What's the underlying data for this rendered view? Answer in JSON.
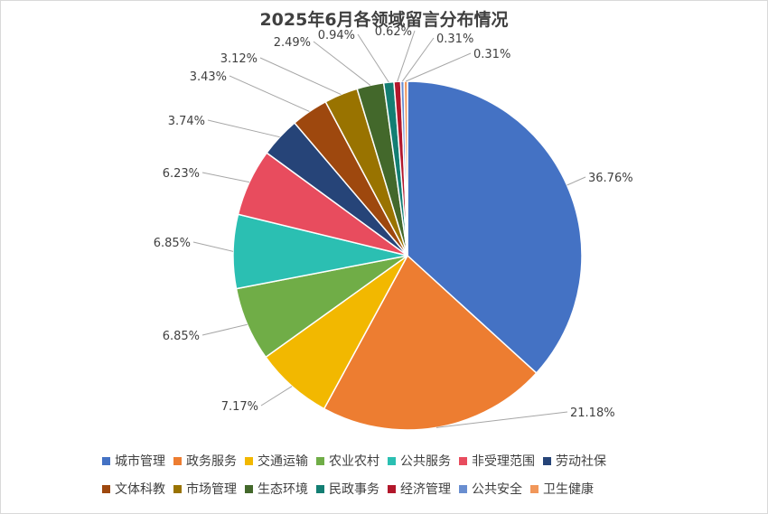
{
  "chart_data": {
    "type": "pie",
    "title": "2025年6月各领域留言分布情况",
    "slices": [
      {
        "label": "城市管理",
        "value": 36.76,
        "value_label": "36.76%",
        "color": "#4472C4"
      },
      {
        "label": "政务服务",
        "value": 21.18,
        "value_label": "21.18%",
        "color": "#ED7D31"
      },
      {
        "label": "交通运输",
        "value": 7.17,
        "value_label": "7.17%",
        "color": "#F2B800"
      },
      {
        "label": "农业农村",
        "value": 6.85,
        "value_label": "6.85%",
        "color": "#70AD47"
      },
      {
        "label": "公共服务",
        "value": 6.85,
        "value_label": "6.85%",
        "color": "#2BBFB2"
      },
      {
        "label": "非受理范围",
        "value": 6.23,
        "value_label": "6.23%",
        "color": "#E84C5E"
      },
      {
        "label": "劳动社保",
        "value": 3.74,
        "value_label": "3.74%",
        "color": "#264478"
      },
      {
        "label": "文体科教",
        "value": 3.43,
        "value_label": "3.43%",
        "color": "#9E480E"
      },
      {
        "label": "市场管理",
        "value": 3.12,
        "value_label": "3.12%",
        "color": "#997300"
      },
      {
        "label": "生态环境",
        "value": 2.49,
        "value_label": "2.49%",
        "color": "#43682B"
      },
      {
        "label": "民政事务",
        "value": 0.94,
        "value_label": "0.94%",
        "color": "#137E73"
      },
      {
        "label": "经济管理",
        "value": 0.62,
        "value_label": "0.62%",
        "color": "#B2172B"
      },
      {
        "label": "公共安全",
        "value": 0.31,
        "value_label": "0.31%",
        "color": "#698ED0"
      },
      {
        "label": "卫生健康",
        "value": 0.31,
        "value_label": "0.31%",
        "color": "#F1975A"
      }
    ],
    "legend_position": "bottom"
  }
}
